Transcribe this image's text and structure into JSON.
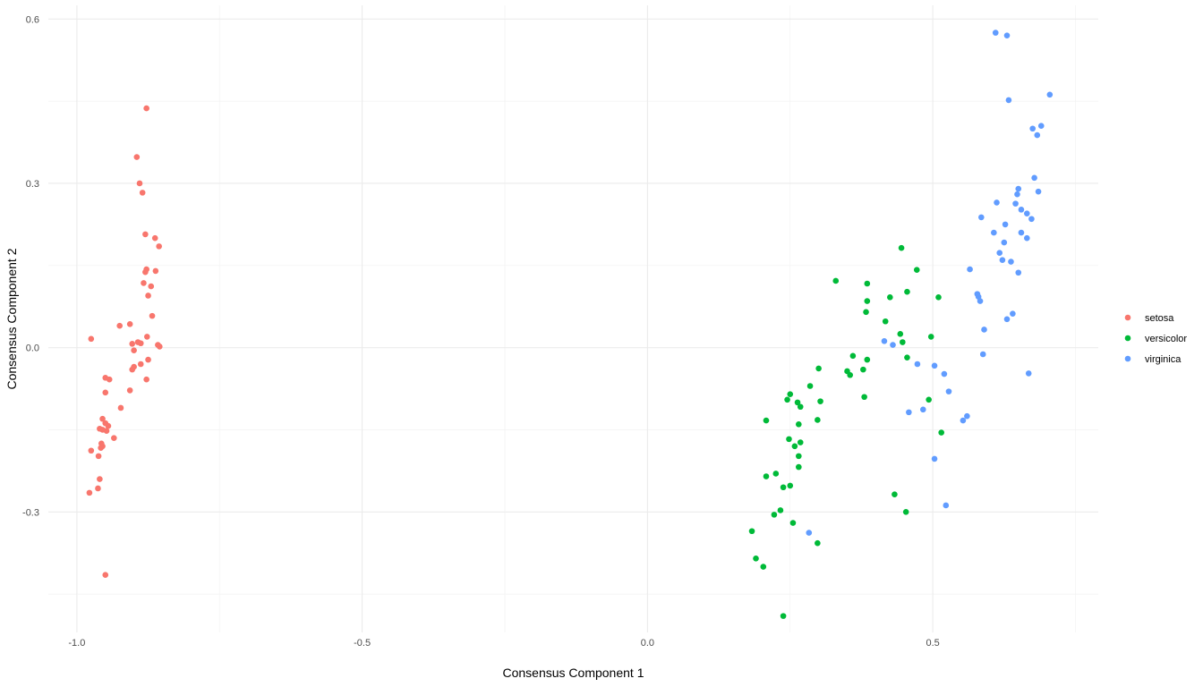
{
  "chart_data": {
    "type": "scatter",
    "title": "",
    "xlabel": "Consensus Component 1",
    "ylabel": "Consensus Component 2",
    "xlim": [
      -1.05,
      0.79
    ],
    "ylim": [
      -0.52,
      0.625
    ],
    "x_ticks": [
      {
        "value": -1.0,
        "label": "-1.0"
      },
      {
        "value": -0.5,
        "label": "-0.5"
      },
      {
        "value": 0.0,
        "label": "0.0"
      },
      {
        "value": 0.5,
        "label": "0.5"
      }
    ],
    "y_ticks": [
      {
        "value": 0.6,
        "label": "0.6"
      },
      {
        "value": 0.3,
        "label": "0.3"
      },
      {
        "value": 0.0,
        "label": "0.0"
      },
      {
        "value": -0.3,
        "label": "-0.3"
      }
    ],
    "grid": true,
    "legend_position": "right",
    "series": [
      {
        "name": "setosa",
        "color": "#F8766D",
        "points": [
          [
            -0.878,
            0.437
          ],
          [
            -0.895,
            0.348
          ],
          [
            -0.89,
            0.3
          ],
          [
            -0.885,
            0.283
          ],
          [
            -0.88,
            0.207
          ],
          [
            -0.863,
            0.2
          ],
          [
            -0.856,
            0.185
          ],
          [
            -0.878,
            0.143
          ],
          [
            -0.88,
            0.138
          ],
          [
            -0.862,
            0.14
          ],
          [
            -0.883,
            0.118
          ],
          [
            -0.87,
            0.112
          ],
          [
            -0.875,
            0.095
          ],
          [
            -0.868,
            0.058
          ],
          [
            -0.907,
            0.043
          ],
          [
            -0.925,
            0.04
          ],
          [
            -0.877,
            0.02
          ],
          [
            -0.975,
            0.016
          ],
          [
            -0.893,
            0.01
          ],
          [
            -0.888,
            0.008
          ],
          [
            -0.903,
            0.007
          ],
          [
            -0.858,
            0.005
          ],
          [
            -0.855,
            0.002
          ],
          [
            -0.9,
            -0.005
          ],
          [
            -0.875,
            -0.022
          ],
          [
            -0.888,
            -0.03
          ],
          [
            -0.9,
            -0.035
          ],
          [
            -0.903,
            -0.04
          ],
          [
            -0.95,
            -0.055
          ],
          [
            -0.943,
            -0.058
          ],
          [
            -0.878,
            -0.058
          ],
          [
            -0.907,
            -0.078
          ],
          [
            -0.95,
            -0.082
          ],
          [
            -0.923,
            -0.11
          ],
          [
            -0.955,
            -0.13
          ],
          [
            -0.95,
            -0.138
          ],
          [
            -0.96,
            -0.148
          ],
          [
            -0.955,
            -0.15
          ],
          [
            -0.945,
            -0.143
          ],
          [
            -0.948,
            -0.152
          ],
          [
            -0.935,
            -0.165
          ],
          [
            -0.957,
            -0.175
          ],
          [
            -0.955,
            -0.18
          ],
          [
            -0.958,
            -0.183
          ],
          [
            -0.975,
            -0.188
          ],
          [
            -0.962,
            -0.198
          ],
          [
            -0.96,
            -0.24
          ],
          [
            -0.963,
            -0.257
          ],
          [
            -0.978,
            -0.265
          ],
          [
            -0.95,
            -0.415
          ]
        ]
      },
      {
        "name": "versicolor",
        "color": "#00BA38",
        "points": [
          [
            0.445,
            0.182
          ],
          [
            0.472,
            0.142
          ],
          [
            0.33,
            0.122
          ],
          [
            0.385,
            0.117
          ],
          [
            0.455,
            0.102
          ],
          [
            0.425,
            0.092
          ],
          [
            0.51,
            0.092
          ],
          [
            0.385,
            0.085
          ],
          [
            0.383,
            0.065
          ],
          [
            0.417,
            0.048
          ],
          [
            0.443,
            0.025
          ],
          [
            0.497,
            0.02
          ],
          [
            0.447,
            0.01
          ],
          [
            0.36,
            -0.015
          ],
          [
            0.385,
            -0.022
          ],
          [
            0.455,
            -0.018
          ],
          [
            0.3,
            -0.038
          ],
          [
            0.35,
            -0.043
          ],
          [
            0.378,
            -0.04
          ],
          [
            0.355,
            -0.05
          ],
          [
            0.285,
            -0.07
          ],
          [
            0.25,
            -0.085
          ],
          [
            0.38,
            -0.09
          ],
          [
            0.245,
            -0.095
          ],
          [
            0.493,
            -0.095
          ],
          [
            0.303,
            -0.098
          ],
          [
            0.263,
            -0.1
          ],
          [
            0.268,
            -0.108
          ],
          [
            0.208,
            -0.133
          ],
          [
            0.298,
            -0.132
          ],
          [
            0.265,
            -0.14
          ],
          [
            0.515,
            -0.155
          ],
          [
            0.248,
            -0.167
          ],
          [
            0.268,
            -0.173
          ],
          [
            0.258,
            -0.18
          ],
          [
            0.265,
            -0.198
          ],
          [
            0.225,
            -0.23
          ],
          [
            0.208,
            -0.235
          ],
          [
            0.265,
            -0.218
          ],
          [
            0.25,
            -0.252
          ],
          [
            0.238,
            -0.255
          ],
          [
            0.433,
            -0.268
          ],
          [
            0.233,
            -0.297
          ],
          [
            0.222,
            -0.305
          ],
          [
            0.453,
            -0.3
          ],
          [
            0.255,
            -0.32
          ],
          [
            0.183,
            -0.335
          ],
          [
            0.298,
            -0.357
          ],
          [
            0.19,
            -0.385
          ],
          [
            0.203,
            -0.4
          ],
          [
            0.238,
            -0.49
          ]
        ]
      },
      {
        "name": "virginica",
        "color": "#619CFF",
        "points": [
          [
            0.61,
            0.575
          ],
          [
            0.63,
            0.57
          ],
          [
            0.705,
            0.462
          ],
          [
            0.633,
            0.452
          ],
          [
            0.69,
            0.405
          ],
          [
            0.675,
            0.4
          ],
          [
            0.683,
            0.388
          ],
          [
            0.678,
            0.31
          ],
          [
            0.65,
            0.29
          ],
          [
            0.648,
            0.28
          ],
          [
            0.685,
            0.285
          ],
          [
            0.612,
            0.265
          ],
          [
            0.645,
            0.263
          ],
          [
            0.655,
            0.252
          ],
          [
            0.665,
            0.245
          ],
          [
            0.585,
            0.238
          ],
          [
            0.673,
            0.235
          ],
          [
            0.627,
            0.225
          ],
          [
            0.607,
            0.21
          ],
          [
            0.655,
            0.21
          ],
          [
            0.665,
            0.2
          ],
          [
            0.625,
            0.192
          ],
          [
            0.617,
            0.173
          ],
          [
            0.622,
            0.16
          ],
          [
            0.637,
            0.157
          ],
          [
            0.565,
            0.143
          ],
          [
            0.65,
            0.137
          ],
          [
            0.578,
            0.098
          ],
          [
            0.58,
            0.093
          ],
          [
            0.583,
            0.085
          ],
          [
            0.64,
            0.062
          ],
          [
            0.63,
            0.052
          ],
          [
            0.59,
            0.033
          ],
          [
            0.415,
            0.012
          ],
          [
            0.43,
            0.005
          ],
          [
            0.588,
            -0.012
          ],
          [
            0.473,
            -0.03
          ],
          [
            0.503,
            -0.033
          ],
          [
            0.52,
            -0.048
          ],
          [
            0.668,
            -0.047
          ],
          [
            0.528,
            -0.08
          ],
          [
            0.483,
            -0.113
          ],
          [
            0.458,
            -0.118
          ],
          [
            0.56,
            -0.125
          ],
          [
            0.553,
            -0.133
          ],
          [
            0.503,
            -0.203
          ],
          [
            0.523,
            -0.288
          ],
          [
            0.283,
            -0.338
          ]
        ]
      }
    ]
  }
}
